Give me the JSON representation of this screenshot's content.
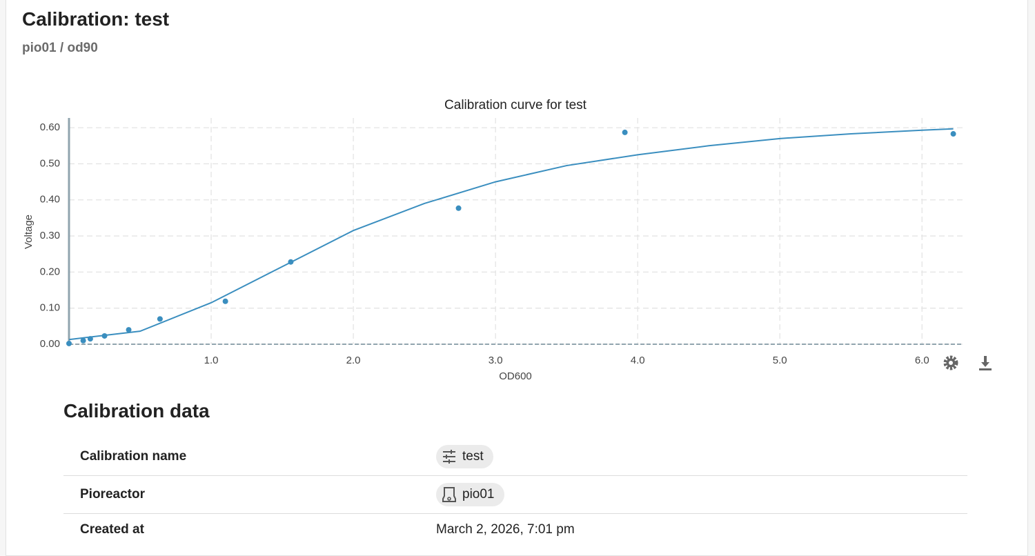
{
  "header": {
    "title": "Calibration: test",
    "subtitle": "pio01 / od90"
  },
  "chart_data": {
    "type": "scatter",
    "title": "Calibration curve for test",
    "x_label": "OD600",
    "y_label": "Voltage",
    "series": [
      {
        "mode": "markers",
        "color": "#3a8ebf",
        "x": [
          0.0,
          0.1,
          0.15,
          0.25,
          0.42,
          0.64,
          1.1,
          1.56,
          2.74,
          3.91,
          6.22
        ],
        "values": [
          0.002,
          0.01,
          0.015,
          0.023,
          0.04,
          0.07,
          0.119,
          0.228,
          0.377,
          0.587,
          0.583
        ]
      },
      {
        "mode": "line",
        "color": "#3a8ebf",
        "x": [
          0,
          0.5,
          1.0,
          1.5,
          2.0,
          2.5,
          3.0,
          3.5,
          4.0,
          4.5,
          5.0,
          5.5,
          6.0,
          6.22
        ],
        "values": [
          0.013,
          0.036,
          0.115,
          0.215,
          0.315,
          0.39,
          0.45,
          0.495,
          0.525,
          0.55,
          0.57,
          0.583,
          0.593,
          0.597
        ]
      }
    ],
    "xlim": [
      0,
      6.29
    ],
    "ylim": [
      0,
      0.627
    ],
    "xticks": [
      {
        "value": 1,
        "label": "1.0"
      },
      {
        "value": 2,
        "label": "2.0"
      },
      {
        "value": 3,
        "label": "3.0"
      },
      {
        "value": 4,
        "label": "4.0"
      },
      {
        "value": 5,
        "label": "5.0"
      },
      {
        "value": 6,
        "label": "6.0"
      }
    ],
    "yticks": [
      {
        "value": 0,
        "label": "0.00"
      },
      {
        "value": 0.1,
        "label": "0.10"
      },
      {
        "value": 0.2,
        "label": "0.20"
      },
      {
        "value": 0.3,
        "label": "0.30"
      },
      {
        "value": 0.4,
        "label": "0.40"
      },
      {
        "value": 0.5,
        "label": "0.50"
      },
      {
        "value": 0.6,
        "label": "0.60"
      }
    ],
    "grid": true
  },
  "table": {
    "title": "Calibration data",
    "rows": [
      [
        "Calibration name",
        "test"
      ],
      [
        "Pioreactor",
        "pio01"
      ],
      [
        "Created at",
        "March 2, 2026, 7:01 pm"
      ]
    ]
  }
}
